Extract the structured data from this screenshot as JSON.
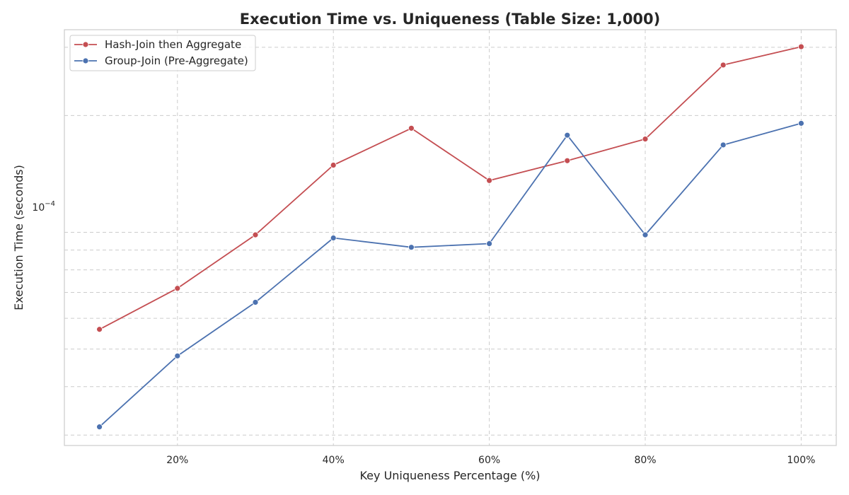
{
  "chart_data": {
    "type": "line",
    "title": "Execution Time vs. Uniqueness (Table Size: 1,000)",
    "xlabel": "Key Uniqueness Percentage (%)",
    "ylabel": "Execution Time (seconds)",
    "x": [
      10,
      20,
      30,
      40,
      50,
      60,
      70,
      80,
      90,
      100
    ],
    "xlim": [
      5.5,
      104.5
    ],
    "xticks": [
      20,
      40,
      60,
      80,
      100
    ],
    "xtick_labels": [
      "20%",
      "40%",
      "60%",
      "80%",
      "100%"
    ],
    "yscale": "log",
    "ylim": [
      2.82e-05,
      0.000333
    ],
    "ytick_label_base": "10",
    "ytick_label_exp": "−4",
    "grid": true,
    "legend_position": "top-left",
    "series": [
      {
        "name": "Hash-Join then Aggregate",
        "color": "#c44e52",
        "values": [
          5.62e-05,
          7.17e-05,
          9.85e-05,
          0.000149,
          0.0001855,
          0.000136,
          0.000153,
          0.000174,
          0.00027,
          0.000301
        ]
      },
      {
        "name": "Group-Join (Pre-Aggregate)",
        "color": "#4c72b0",
        "values": [
          3.15e-05,
          4.8e-05,
          6.6e-05,
          9.67e-05,
          9.15e-05,
          9.35e-05,
          0.000178,
          9.85e-05,
          0.000168,
          0.000191
        ]
      }
    ]
  }
}
